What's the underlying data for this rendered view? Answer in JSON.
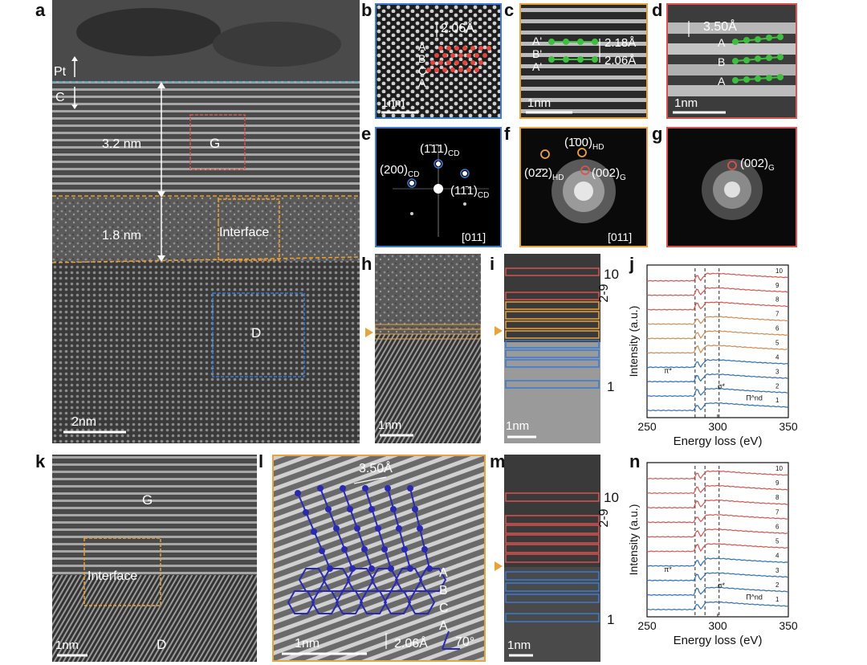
{
  "panel_letters": {
    "a": "a",
    "b": "b",
    "c": "c",
    "d": "d",
    "e": "e",
    "f": "f",
    "g": "g",
    "h": "h",
    "i": "i",
    "j": "j",
    "k": "k",
    "l": "l",
    "m": "m",
    "n": "n"
  },
  "panel_a": {
    "pt_label": "Pt",
    "c_label": "C",
    "thickness_top": "3.2 nm",
    "thickness_bottom": "1.8 nm",
    "box_g_label": "G",
    "box_interface_label": "Interface",
    "box_d_label": "D",
    "scalebar": "2nm"
  },
  "panel_b": {
    "spacing": "2.06Å",
    "stack": [
      "A",
      "B",
      "C",
      "A"
    ],
    "scalebar": "1nm"
  },
  "panel_c": {
    "stack": [
      "A'",
      "B'",
      "A'"
    ],
    "spacing_1": "2.18Å",
    "spacing_2": "2.06Å",
    "scalebar": "1nm"
  },
  "panel_d": {
    "spacing": "3.50Å",
    "stack": [
      "A",
      "B",
      "A"
    ],
    "scalebar": "1nm"
  },
  "panel_e": {
    "spot_top": "(1̄1̄1)",
    "spot_top_sub": "CD",
    "spot_left": "(200)",
    "spot_left_sub": "CD",
    "spot_right": "(11̄1)",
    "spot_right_sub": "CD",
    "zone_axis": "[011]"
  },
  "panel_f": {
    "spot_top": "(1̄00)",
    "spot_top_sub": "HD",
    "spot_left": "(02̄2)",
    "spot_left_sub": "HD",
    "spot_right": "(002)",
    "spot_right_sub": "G",
    "zone_axis": "[011]"
  },
  "panel_g": {
    "spot": "(002)",
    "spot_sub": "G"
  },
  "panel_h": {
    "scalebar": "1nm"
  },
  "panel_i": {
    "label_top": "10",
    "label_mid": "2-9",
    "label_bottom": "1",
    "scalebar": "1nm"
  },
  "panel_m": {
    "label_top": "10",
    "label_mid": "2-9",
    "label_bottom": "1",
    "scalebar": "1nm"
  },
  "panel_k": {
    "label_g": "G",
    "label_interface": "Interface",
    "label_d": "D",
    "scalebar": "1nm"
  },
  "panel_l": {
    "spacing_top": "3.50Å",
    "stack": [
      "A",
      "B",
      "C",
      "A"
    ],
    "spacing_bottom": "2.06Å",
    "angle": "70°",
    "scalebar": "1nm"
  },
  "chart_data": [
    {
      "type": "line",
      "panel": "j",
      "xlabel": "Energy loss (eV)",
      "ylabel": "Intensity (a.u.)",
      "xlim": [
        250,
        350
      ],
      "xticks": [
        250,
        300,
        350
      ],
      "vlines": [
        284,
        291,
        301
      ],
      "annotations": [
        "π*",
        "σ*",
        "Π^nd"
      ],
      "series": [
        {
          "name": "10",
          "color": "#d9534f"
        },
        {
          "name": "9",
          "color": "#d9534f"
        },
        {
          "name": "8",
          "color": "#d9534f"
        },
        {
          "name": "7",
          "color": "#d48a4f"
        },
        {
          "name": "6",
          "color": "#d48a4f"
        },
        {
          "name": "5",
          "color": "#d48a4f"
        },
        {
          "name": "4",
          "color": "#2f6fb5"
        },
        {
          "name": "3",
          "color": "#2f6fb5"
        },
        {
          "name": "2",
          "color": "#2f6fb5"
        },
        {
          "name": "1",
          "color": "#2f6fb5"
        }
      ]
    },
    {
      "type": "line",
      "panel": "n",
      "xlabel": "Energy loss (eV)",
      "ylabel": "Intensity (a.u.)",
      "xlim": [
        250,
        350
      ],
      "xticks": [
        250,
        300,
        350
      ],
      "vlines": [
        284,
        291,
        301
      ],
      "annotations": [
        "π*",
        "σ*",
        "Π^nd"
      ],
      "series": [
        {
          "name": "10",
          "color": "#d9534f"
        },
        {
          "name": "9",
          "color": "#d9534f"
        },
        {
          "name": "8",
          "color": "#d9534f"
        },
        {
          "name": "7",
          "color": "#d9534f"
        },
        {
          "name": "6",
          "color": "#d9534f"
        },
        {
          "name": "5",
          "color": "#d9534f"
        },
        {
          "name": "4",
          "color": "#2f6fb5"
        },
        {
          "name": "3",
          "color": "#2f6fb5"
        },
        {
          "name": "2",
          "color": "#2f6fb5"
        },
        {
          "name": "1",
          "color": "#2f6fb5"
        }
      ]
    }
  ]
}
